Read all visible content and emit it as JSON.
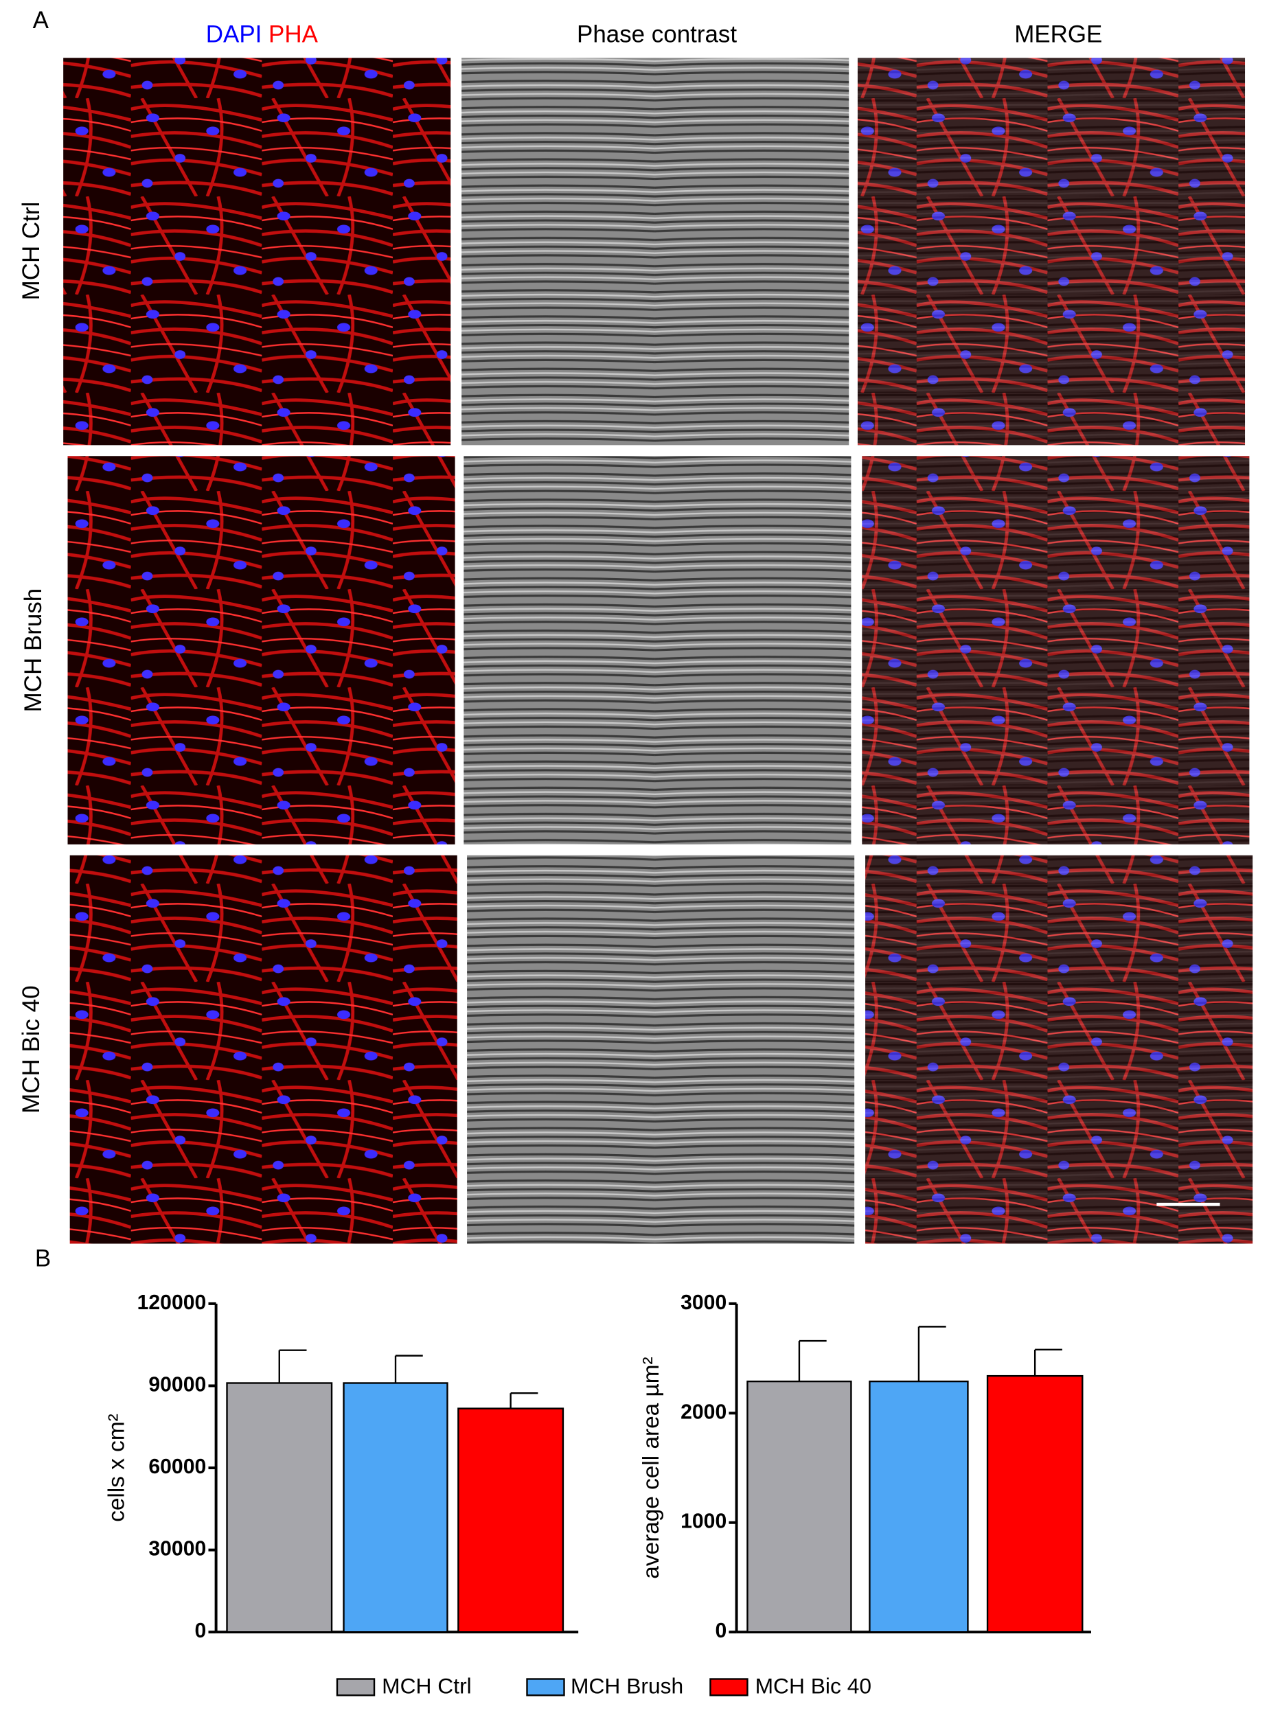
{
  "panel_labels": [
    "A",
    "B"
  ],
  "column_headers": {
    "dapi": "DAPI",
    "pha": "PHA",
    "phase": "Phase contrast",
    "merge": "MERGE"
  },
  "row_labels": [
    "MCH Ctrl",
    "MCH Brush",
    "MCH Bic 40"
  ],
  "chart_data": [
    {
      "type": "bar",
      "ylabel": "cells x cm²",
      "categories": [
        "MCH Ctrl",
        "MCH Brush",
        "MCH Bic 40"
      ],
      "colors": [
        "#a6a6ab",
        "#4ea6f5",
        "#ff0000"
      ],
      "values": [
        91000,
        91000,
        81700
      ],
      "errors": [
        12000,
        10000,
        5600
      ],
      "ylim": [
        0,
        120000
      ],
      "yticks": [
        0,
        30000,
        60000,
        90000,
        120000
      ]
    },
    {
      "type": "bar",
      "ylabel": "average cell area µm²",
      "values": [
        2290,
        2290,
        2340
      ],
      "errors": [
        370,
        500,
        240
      ],
      "ylim": [
        0,
        3000
      ],
      "yticks": [
        0,
        1000,
        2000,
        3000
      ]
    }
  ]
}
